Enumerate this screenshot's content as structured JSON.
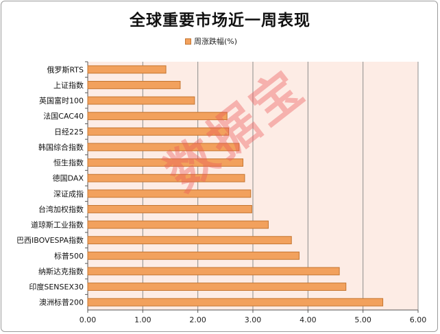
{
  "chart_data": {
    "type": "bar",
    "orientation": "horizontal",
    "title": "全球重要市场近一周表现",
    "series": [
      {
        "name": "周涨跌幅(%)",
        "values": [
          1.42,
          1.68,
          1.94,
          2.53,
          2.56,
          2.75,
          2.82,
          2.85,
          2.96,
          2.98,
          3.28,
          3.7,
          3.84,
          4.57,
          4.69,
          5.36
        ]
      }
    ],
    "categories": [
      "俄罗斯RTS",
      "上证指数",
      "英国富时100",
      "法国CAC40",
      "日经225",
      "韩国综合指数",
      "恒生指数",
      "德国DAX",
      "深证成指",
      "台湾加权指数",
      "道琼斯工业指数",
      "巴西IBOVESPA指数",
      "标普500",
      "纳斯达克指数",
      "印度SENSEX30",
      "澳洲标普200"
    ],
    "xlim": [
      0,
      6
    ],
    "xticks": [
      "0.00",
      "1.00",
      "2.00",
      "3.00",
      "4.00",
      "5.00",
      "6.00"
    ],
    "grid": true,
    "legend_position": "top",
    "colors": {
      "bar": "#f2a15d",
      "bar_border": "#c47530",
      "plot_bg": "#fdece5",
      "grid": "#8c8c8c"
    }
  },
  "watermark": "数据宝"
}
